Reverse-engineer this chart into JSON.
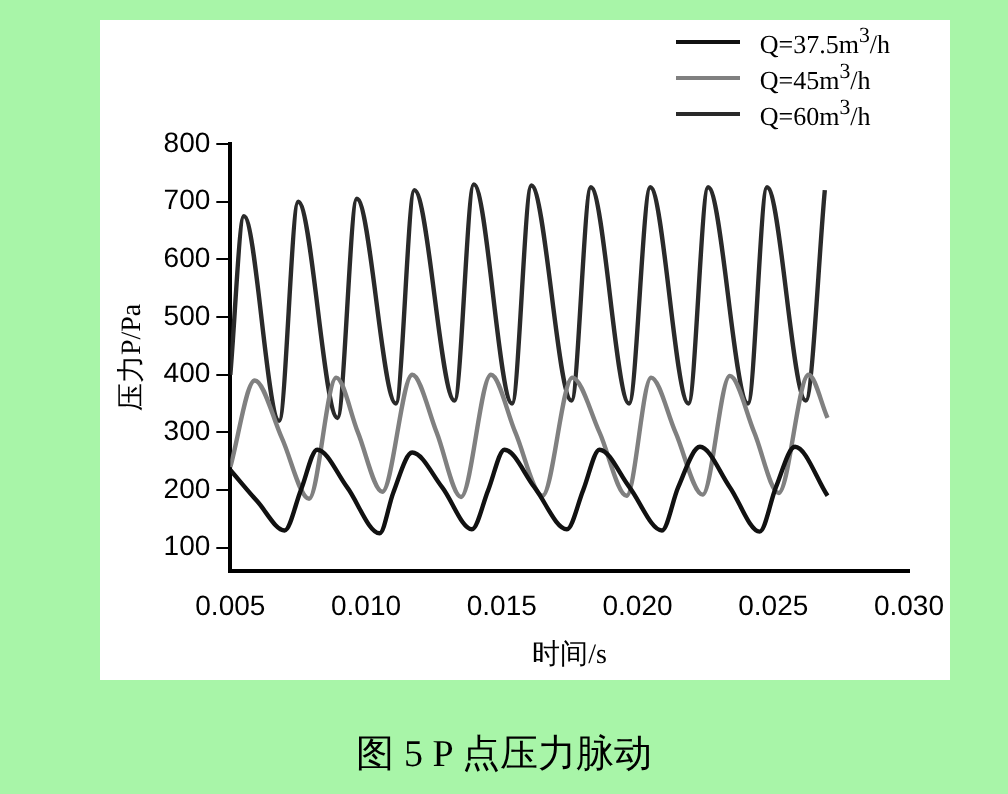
{
  "chart_data": {
    "type": "line",
    "title": "图 5  P 点压力脉动",
    "xlabel": "时间/s",
    "ylabel": "压力P/Pa",
    "xlim": [
      0.005,
      0.03
    ],
    "xticks": [
      {
        "value": 0.005,
        "label": "0.005"
      },
      {
        "value": 0.01,
        "label": "0.010"
      },
      {
        "value": 0.015,
        "label": "0.015"
      },
      {
        "value": 0.02,
        "label": "0.020"
      },
      {
        "value": 0.025,
        "label": "0.025"
      },
      {
        "value": 0.03,
        "label": "0.030"
      }
    ],
    "ylim": [
      60,
      800
    ],
    "yticks": [
      100,
      200,
      300,
      400,
      500,
      600,
      700,
      800
    ],
    "grid": false,
    "legend": "top right",
    "marker": "none",
    "line_style": "solid",
    "series": [
      {
        "name": "Q=37.5m$^{3}$/h",
        "color": "#111111",
        "x": [
          0.005,
          0.006,
          0.007,
          0.0076,
          0.0082,
          0.0093,
          0.0105,
          0.011,
          0.0117,
          0.0128,
          0.0139,
          0.0145,
          0.0151,
          0.0162,
          0.0174,
          0.018,
          0.0186,
          0.0197,
          0.0209,
          0.0215,
          0.0223,
          0.0234,
          0.0245,
          0.0251,
          0.0258,
          0.027
        ],
        "values": [
          235,
          180,
          130,
          200,
          270,
          205,
          125,
          195,
          265,
          205,
          132,
          200,
          270,
          205,
          132,
          200,
          270,
          205,
          130,
          205,
          275,
          205,
          128,
          205,
          275,
          190
        ]
      },
      {
        "name": "Q=45m$^{3}$/h",
        "color": "#808080",
        "x": [
          0.005,
          0.0059,
          0.0069,
          0.0079,
          0.0089,
          0.0097,
          0.0106,
          0.0117,
          0.0126,
          0.0135,
          0.0146,
          0.0155,
          0.0165,
          0.0176,
          0.0186,
          0.0196,
          0.0205,
          0.0214,
          0.0224,
          0.0234,
          0.0243,
          0.0252,
          0.0263,
          0.027
        ],
        "values": [
          240,
          390,
          290,
          185,
          395,
          300,
          197,
          400,
          300,
          188,
          400,
          300,
          190,
          395,
          300,
          190,
          395,
          300,
          192,
          398,
          300,
          195,
          400,
          325
        ]
      },
      {
        "name": "Q=60m$^{3}$/h",
        "color": "#2a2a2a",
        "x": [
          0.005,
          0.0055,
          0.0068,
          0.0075,
          0.00895,
          0.00966,
          0.0111,
          0.01178,
          0.01326,
          0.01397,
          0.01538,
          0.01609,
          0.01757,
          0.01828,
          0.01969,
          0.02047,
          0.02188,
          0.0226,
          0.02407,
          0.02477,
          0.0262,
          0.0269
        ],
        "values": [
          400,
          675,
          320,
          700,
          325,
          705,
          350,
          720,
          355,
          730,
          350,
          728,
          355,
          725,
          350,
          725,
          350,
          725,
          350,
          725,
          355,
          720
        ]
      }
    ]
  }
}
